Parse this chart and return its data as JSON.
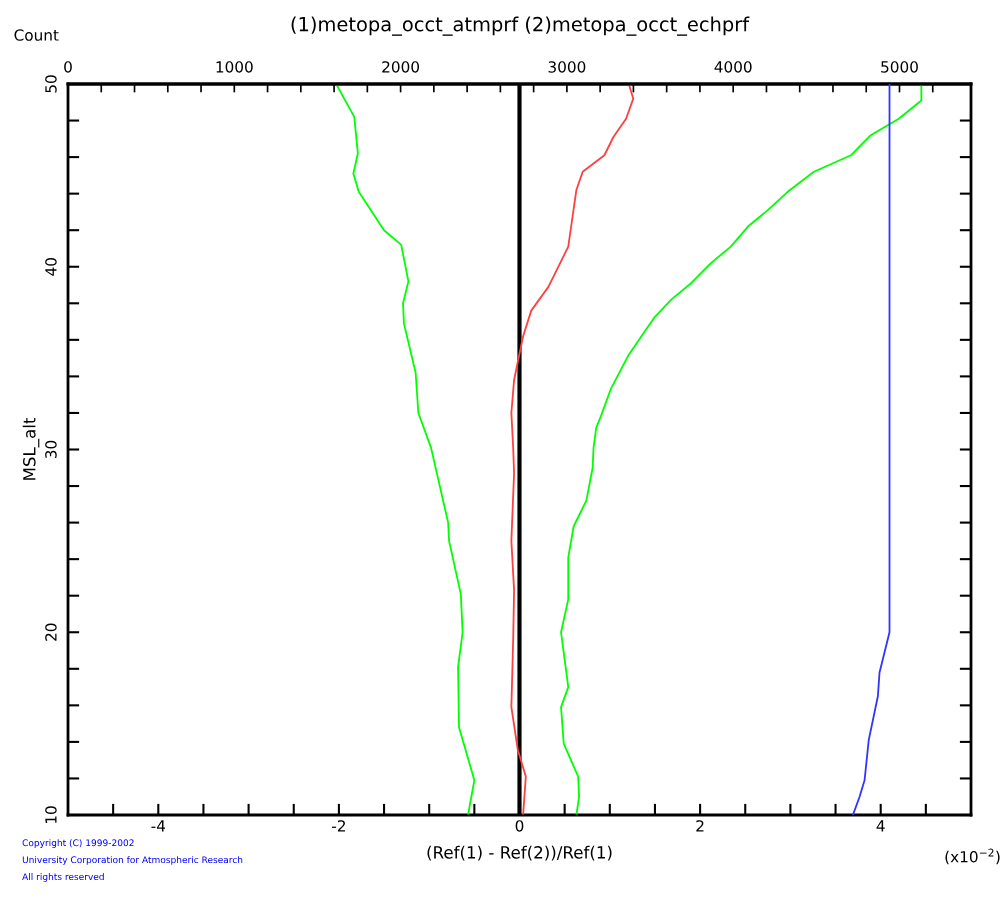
{
  "chart_data": {
    "type": "line",
    "title": "(1)metopa_occt_atmprf (2)metopa_occt_echprf",
    "xlabel": "(Ref(1) - Ref(2))/Ref(1)",
    "ylabel": "MSL_alt",
    "x2label": "Count",
    "xlim": [
      -5,
      5
    ],
    "xticks": [
      {
        "value": -4.5,
        "label": null
      },
      -4,
      {
        "value": -3.5,
        "label": null
      },
      {
        "value": -3,
        "label": null
      },
      {
        "value": -2.5,
        "label": null
      },
      -2,
      {
        "value": -1.5,
        "label": null
      },
      {
        "value": -1,
        "label": null
      },
      {
        "value": -0.5,
        "label": null
      },
      0,
      {
        "value": 0.5,
        "label": null
      },
      {
        "value": 1,
        "label": null
      },
      {
        "value": 1.5,
        "label": null
      },
      2,
      {
        "value": 2.5,
        "label": null
      },
      {
        "value": 3,
        "label": null
      },
      {
        "value": 3.5,
        "label": null
      },
      4,
      {
        "value": 4.5,
        "label": null
      }
    ],
    "x2lim": [
      0,
      5430
    ],
    "x2ticks": [
      0,
      {
        "value": 200,
        "label": null
      },
      {
        "value": 400,
        "label": null
      },
      {
        "value": 600,
        "label": null
      },
      {
        "value": 800,
        "label": null
      },
      1000,
      {
        "value": 1200,
        "label": null
      },
      {
        "value": 1400,
        "label": null
      },
      {
        "value": 1600,
        "label": null
      },
      {
        "value": 1800,
        "label": null
      },
      2000,
      {
        "value": 2200,
        "label": null
      },
      {
        "value": 2400,
        "label": null
      },
      {
        "value": 2600,
        "label": null
      },
      {
        "value": 2800,
        "label": null
      },
      3000,
      {
        "value": 3200,
        "label": null
      },
      {
        "value": 3400,
        "label": null
      },
      {
        "value": 3600,
        "label": null
      },
      {
        "value": 3800,
        "label": null
      },
      4000,
      {
        "value": 4200,
        "label": null
      },
      {
        "value": 4400,
        "label": null
      },
      {
        "value": 4600,
        "label": null
      },
      {
        "value": 4800,
        "label": null
      },
      5000,
      {
        "value": 5200,
        "label": null
      }
    ],
    "ylim": [
      10,
      50
    ],
    "yticks": [
      10,
      {
        "value": 12,
        "label": null
      },
      {
        "value": 14,
        "label": null
      },
      {
        "value": 16,
        "label": null
      },
      {
        "value": 18,
        "label": null
      },
      20,
      {
        "value": 22,
        "label": null
      },
      {
        "value": 24,
        "label": null
      },
      {
        "value": 26,
        "label": null
      },
      {
        "value": 28,
        "label": null
      },
      30,
      {
        "value": 32,
        "label": null
      },
      {
        "value": 34,
        "label": null
      },
      {
        "value": 36,
        "label": null
      },
      {
        "value": 38,
        "label": null
      },
      40,
      {
        "value": 42,
        "label": null
      },
      {
        "value": 44,
        "label": null
      },
      {
        "value": 46,
        "label": null
      },
      {
        "value": 48,
        "label": null
      },
      50
    ],
    "grid": false,
    "legend": false,
    "ref_lines": [
      {
        "axis": "x",
        "value": 0,
        "label": null,
        "color": "#000000"
      }
    ],
    "series": [
      {
        "color": "#00ff00",
        "x": [
          -2.03,
          -1.83,
          -1.79,
          -1.84,
          -1.78,
          -1.5,
          -1.31,
          -1.23,
          -1.29,
          -1.28,
          -1.15,
          -1.12,
          -0.98,
          -0.79,
          -0.78,
          -0.65,
          -0.63,
          -0.68,
          -0.67,
          -0.5,
          -0.57
        ],
        "values": [
          50,
          48.2,
          46.2,
          45.1,
          44.1,
          42.0,
          41.2,
          39.2,
          38.0,
          36.9,
          34.2,
          32.0,
          30.1,
          26.0,
          25.0,
          22.1,
          20.0,
          18.1,
          14.8,
          11.9,
          10.0
        ]
      },
      {
        "color": "#ff4040",
        "x": [
          1.21,
          1.26,
          1.18,
          1.04,
          0.94,
          0.7,
          0.63,
          0.54,
          0.32,
          0.13,
          0.04,
          -0.06,
          -0.09,
          -0.07,
          -0.06,
          -0.09,
          -0.06,
          -0.07,
          -0.09,
          -0.02,
          0.07,
          0.04
        ],
        "values": [
          50,
          49.2,
          48.1,
          47.1,
          46.1,
          45.2,
          44.2,
          41.1,
          38.9,
          37.6,
          36.2,
          33.8,
          32.0,
          30.1,
          28.7,
          25.0,
          22.3,
          19.6,
          15.9,
          13.6,
          12.1,
          10.0
        ]
      },
      {
        "color": "#00ff00",
        "x": [
          4.45,
          4.45,
          4.2,
          3.89,
          3.67,
          3.26,
          2.97,
          2.75,
          2.53,
          2.34,
          2.12,
          1.9,
          1.68,
          1.49,
          1.35,
          1.2,
          1.01,
          0.9,
          0.85,
          0.82,
          0.81,
          0.74,
          0.6,
          0.54,
          0.54,
          0.46,
          0.54,
          0.46,
          0.49,
          0.65,
          0.66,
          0.63
        ],
        "values": [
          50,
          49.1,
          48.1,
          47.2,
          46.1,
          45.2,
          44.1,
          43.1,
          42.2,
          41.1,
          40.2,
          39.1,
          38.2,
          37.2,
          36.2,
          35.1,
          33.3,
          31.8,
          31.2,
          30.1,
          29.0,
          27.2,
          25.8,
          24.1,
          21.8,
          20.0,
          17.0,
          15.9,
          13.9,
          12.1,
          11.0,
          10.0
        ]
      },
      {
        "color": "#3333ff",
        "axis": "x2",
        "x": [
          4940,
          4940,
          4880,
          4870,
          4815,
          4790,
          4760,
          4720
        ],
        "values": [
          50,
          20.0,
          17.8,
          16.5,
          14.1,
          11.9,
          11.0,
          10.0
        ]
      }
    ],
    "annotations": [
      "(x10$^{−2}$)",
      "Copyright (C) 1999-2002\nUniversity Corporation for Atmospheric Research\nAll rights reserved"
    ]
  }
}
